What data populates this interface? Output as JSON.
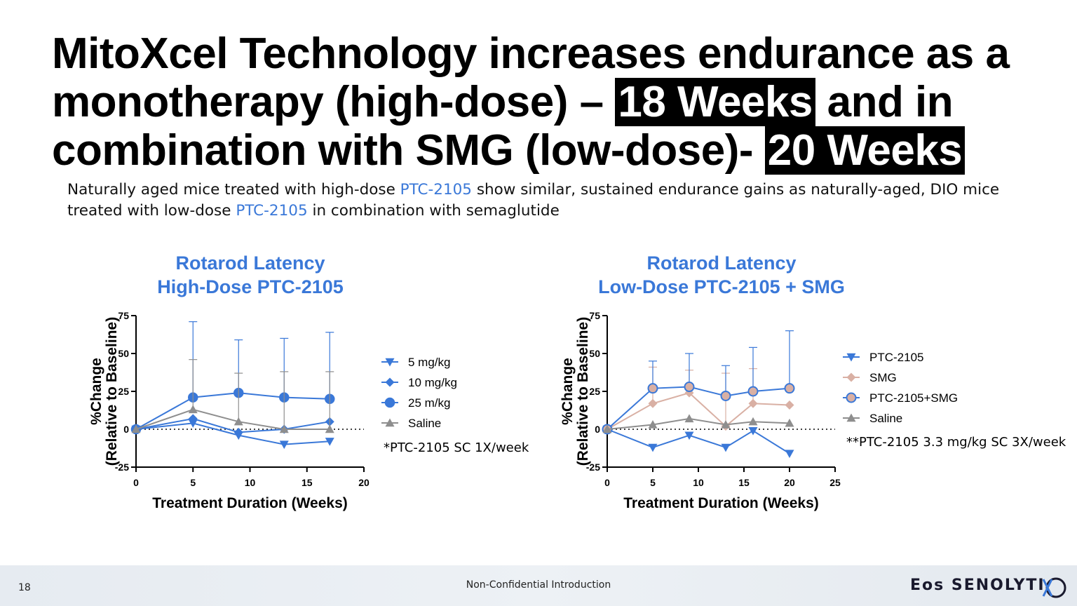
{
  "title": {
    "part1": "MitoXcel Technology increases endurance as a monotherapy (high-dose) – ",
    "highlight1": "18 Weeks",
    "part2": " and in combination with SMG (low-dose)- ",
    "highlight2": "20  Weeks"
  },
  "subtitle": {
    "part1": "Naturally aged mice treated with high-dose ",
    "drug1": "PTC-2105",
    "part2": " show similar, sustained endurance gains as naturally-aged, DIO mice treated with low-dose ",
    "drug2": "PTC-2105",
    "part3": " in combination with semaglutide"
  },
  "colors": {
    "blue": "#3a78d8",
    "pink": "#d9b0a4",
    "gray": "#8e8e8e"
  },
  "chart_data": [
    {
      "type": "line",
      "title": [
        "Rotarod Latency",
        "High-Dose PTC-2105"
      ],
      "xlabel": "Treatment Duration (Weeks)",
      "ylabel": [
        "%Change",
        "(Relative to Baseline)"
      ],
      "xlim": [
        0,
        20
      ],
      "ylim": [
        -25,
        75
      ],
      "xticks": [
        0,
        5,
        10,
        15,
        20
      ],
      "yticks": [
        -25,
        0,
        25,
        50,
        75
      ],
      "xticklabels": [
        "0",
        "5",
        "10",
        "15",
        "20"
      ],
      "yticklabels": [
        "-25",
        "0",
        "25",
        "50",
        "75"
      ],
      "reference_line_y": 0,
      "series": [
        {
          "name": "5 mg/kg",
          "marker": "triangle-down",
          "color": "#3a78d8",
          "x": [
            0,
            5,
            9,
            13,
            17
          ],
          "y": [
            0,
            4,
            -4,
            -10,
            -8
          ],
          "err": [
            0,
            0,
            0,
            0,
            0
          ]
        },
        {
          "name": "10 mg/kg",
          "marker": "diamond",
          "color": "#3a78d8",
          "x": [
            0,
            5,
            9,
            13,
            17
          ],
          "y": [
            0,
            7,
            -2,
            0,
            5
          ],
          "err": [
            0,
            0,
            0,
            0,
            0
          ]
        },
        {
          "name": "25 m/kg",
          "marker": "circle",
          "color": "#3a78d8",
          "x": [
            0,
            5,
            9,
            13,
            17
          ],
          "y": [
            0,
            21,
            24,
            21,
            20
          ],
          "err": [
            0,
            50,
            35,
            39,
            44
          ]
        },
        {
          "name": "Saline",
          "marker": "triangle-up",
          "color": "#8e8e8e",
          "x": [
            0,
            5,
            9,
            13,
            17
          ],
          "y": [
            0,
            13,
            5,
            0,
            0
          ],
          "err": [
            0,
            33,
            32,
            38,
            38
          ]
        }
      ],
      "legend_position": "right",
      "note": "*PTC-2105 SC 1X/week"
    },
    {
      "type": "line",
      "title": [
        "Rotarod Latency",
        "Low-Dose PTC-2105 + SMG"
      ],
      "xlabel": "Treatment Duration (Weeks)",
      "ylabel": [
        "%Change",
        "(Relative to Baseline)"
      ],
      "xlim": [
        0,
        25
      ],
      "ylim": [
        -25,
        75
      ],
      "xticks": [
        0,
        5,
        10,
        15,
        20,
        25
      ],
      "yticks": [
        -25,
        0,
        25,
        50,
        75
      ],
      "xticklabels": [
        "0",
        "5",
        "10",
        "15",
        "20",
        "25"
      ],
      "yticklabels": [
        "-25",
        "0",
        "25",
        "50",
        "75"
      ],
      "reference_line_y": 0,
      "series": [
        {
          "name": "PTC-2105",
          "marker": "triangle-down",
          "color": "#3a78d8",
          "x": [
            0,
            5,
            9,
            13,
            16,
            20
          ],
          "y": [
            0,
            -12,
            -4,
            -12,
            -1,
            -16
          ],
          "err": [
            0,
            0,
            0,
            0,
            0,
            0
          ]
        },
        {
          "name": "SMG",
          "marker": "diamond",
          "color": "#d9b0a4",
          "x": [
            0,
            5,
            9,
            13,
            16,
            20
          ],
          "y": [
            0,
            17,
            24,
            2,
            17,
            16
          ],
          "err": [
            0,
            24,
            15,
            35,
            23,
            0
          ]
        },
        {
          "name": "PTC-2105+SMG",
          "marker": "circle",
          "color": "#3a78d8",
          "x": [
            0,
            5,
            9,
            13,
            16,
            20
          ],
          "y": [
            0,
            27,
            28,
            22,
            25,
            27
          ],
          "err": [
            0,
            18,
            22,
            20,
            29,
            38
          ]
        },
        {
          "name": "Saline",
          "marker": "triangle-up",
          "color": "#8e8e8e",
          "x": [
            0,
            5,
            9,
            13,
            16,
            20
          ],
          "y": [
            0,
            3,
            7,
            3,
            5,
            4
          ],
          "err": [
            0,
            0,
            0,
            0,
            0,
            0
          ]
        }
      ],
      "legend_position": "right",
      "note": "**PTC-2105 3.3 mg/kg SC 3X/week"
    }
  ],
  "footer": {
    "page_number": "18",
    "center_text": "Non-Confidential Introduction",
    "logo_text": "Eos SENOLYTI"
  }
}
